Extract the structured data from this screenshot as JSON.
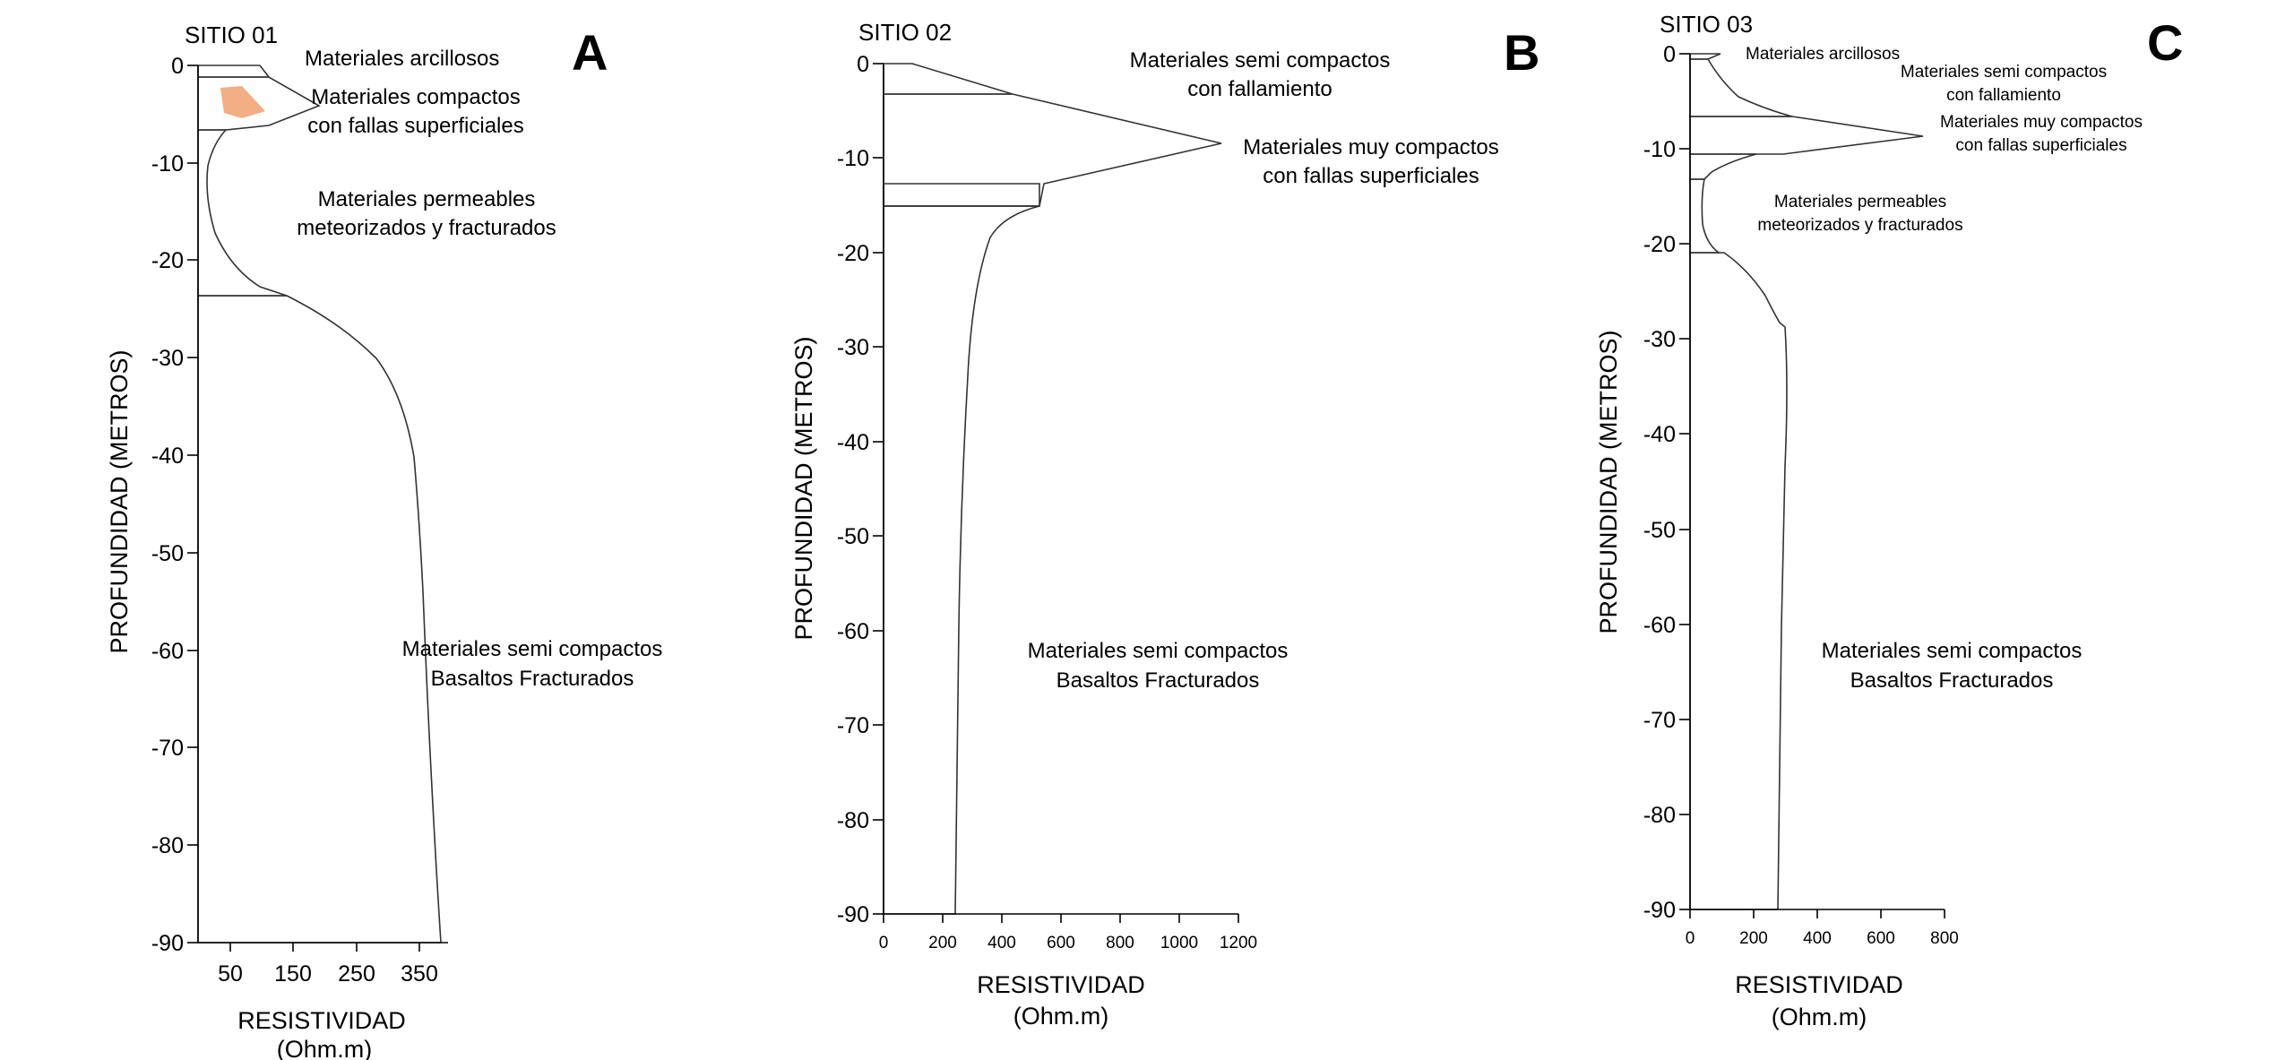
{
  "colors": {
    "semi_compact": "#ffff99",
    "very_compact": "#f4a4a4",
    "permeable": "#b7e0c4",
    "orange_patch": "#f0a070",
    "outline": "#333333"
  },
  "panels": [
    {
      "letter": "A",
      "site": "SITIO 01",
      "ylabel": "PROFUNDIDAD (METROS)",
      "xlabel1": "RESISTIVIDAD",
      "xlabel2": "(Ohm.m)",
      "yticks": [
        "0",
        "-10",
        "-20",
        "-30",
        "-40",
        "-50",
        "-60",
        "-70",
        "-80",
        "-90"
      ],
      "xticks": [
        "50",
        "150",
        "250",
        "350"
      ],
      "labels": [
        {
          "text": "Materiales arcillosos"
        },
        {
          "text": "Materiales compactos"
        },
        {
          "text": "con fallas superficiales"
        },
        {
          "text": "Materiales permeables"
        },
        {
          "text": "meteorizados y fracturados"
        },
        {
          "text": "Materiales semi compactos"
        },
        {
          "text": "Basaltos Fracturados"
        }
      ]
    },
    {
      "letter": "B",
      "site": "SITIO 02",
      "ylabel": "PROFUNDIDAD (METROS)",
      "xlabel1": "RESISTIVIDAD",
      "xlabel2": "(Ohm.m)",
      "yticks": [
        "0",
        "-10",
        "-20",
        "-30",
        "-40",
        "-50",
        "-60",
        "-70",
        "-80",
        "-90"
      ],
      "xticks": [
        "0",
        "200",
        "400",
        "600",
        "800",
        "1000",
        "1200"
      ],
      "labels": [
        {
          "text": "Materiales semi compactos"
        },
        {
          "text": "con fallamiento"
        },
        {
          "text": "Materiales muy compactos"
        },
        {
          "text": "con fallas superficiales"
        },
        {
          "text": "Materiales semi compactos"
        },
        {
          "text": "Basaltos Fracturados"
        }
      ]
    },
    {
      "letter": "C",
      "site": "SITIO 03",
      "ylabel": "PROFUNDIDAD (METROS)",
      "xlabel1": "RESISTIVIDAD",
      "xlabel2": "(Ohm.m)",
      "yticks": [
        "0",
        "-10",
        "-20",
        "-30",
        "-40",
        "-50",
        "-60",
        "-70",
        "-80",
        "-90"
      ],
      "xticks": [
        "0",
        "200",
        "400",
        "600",
        "800"
      ],
      "labels": [
        {
          "text": "Materiales arcillosos"
        },
        {
          "text": "Materiales semi compactos"
        },
        {
          "text": "con fallamiento"
        },
        {
          "text": "Materiales muy compactos"
        },
        {
          "text": "con fallas superficiales"
        },
        {
          "text": "Materiales permeables"
        },
        {
          "text": "meteorizados y fracturados"
        },
        {
          "text": "Materiales semi compactos"
        },
        {
          "text": "Basaltos Fracturados"
        }
      ]
    }
  ]
}
